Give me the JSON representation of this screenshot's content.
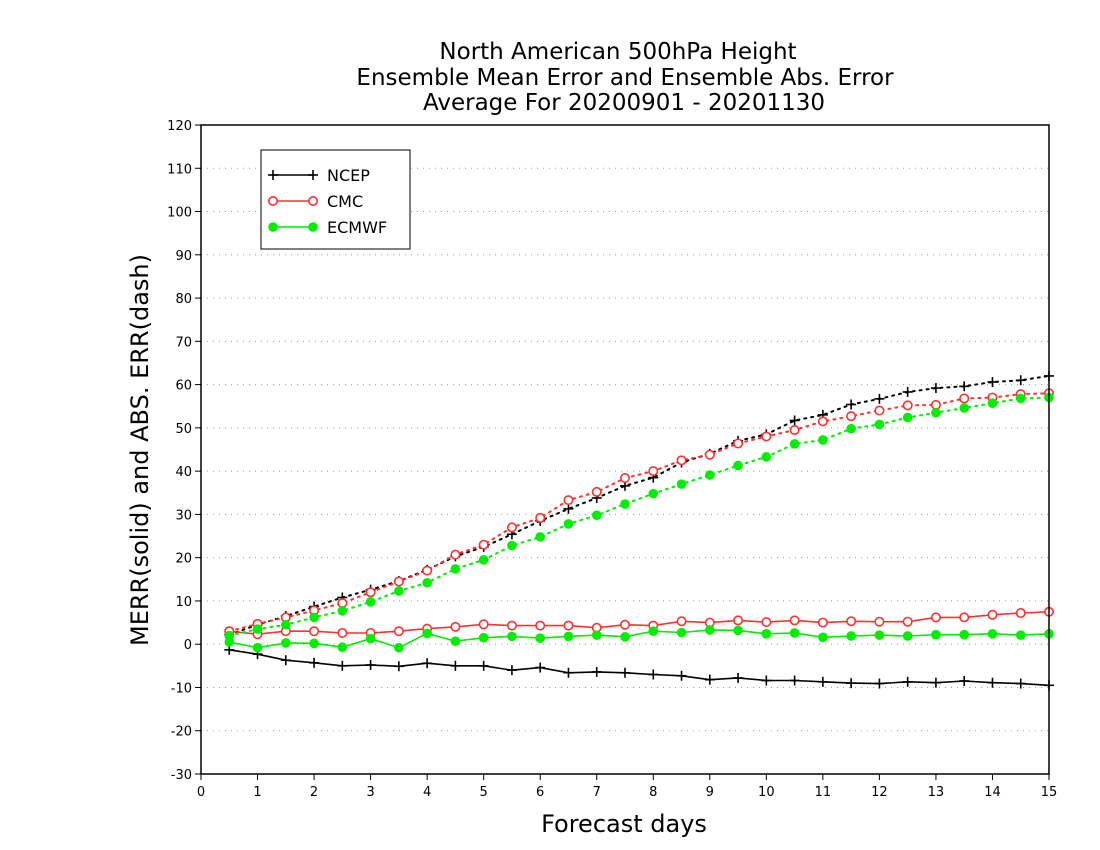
{
  "chart_data": {
    "type": "line",
    "title_lines": [
      "North American 500hPa Height",
      "Ensemble Mean Error and Ensemble Abs. Error",
      "Average For 20200901 - 20201130"
    ],
    "xlabel": "Forecast days",
    "ylabel": "MERR(solid) and ABS. ERR(dash)",
    "xlim": [
      0,
      15
    ],
    "ylim": [
      -30,
      120
    ],
    "xticks": [
      0,
      1,
      2,
      3,
      4,
      5,
      6,
      7,
      8,
      9,
      10,
      11,
      12,
      13,
      14,
      15
    ],
    "yticks": [
      -30,
      -20,
      -10,
      0,
      10,
      20,
      30,
      40,
      50,
      60,
      70,
      80,
      90,
      100,
      110,
      120
    ],
    "grid": "horizontal dotted",
    "legend_position": "top-left",
    "x": [
      0.5,
      1,
      1.5,
      2,
      2.5,
      3,
      3.5,
      4,
      4.5,
      5,
      5.5,
      6,
      6.5,
      7,
      7.5,
      8,
      8.5,
      9,
      9.5,
      10,
      10.5,
      11,
      11.5,
      12,
      12.5,
      13,
      13.5,
      14,
      14.5,
      15
    ],
    "series": [
      {
        "name": "NCEP",
        "color": "#000000",
        "marker": "plus",
        "merr": [
          -1.3,
          -2.3,
          -3.7,
          -4.3,
          -5,
          -4.8,
          -5.1,
          -4.4,
          -5,
          -5,
          -6,
          -5.4,
          -6.6,
          -6.4,
          -6.6,
          -7,
          -7.3,
          -8.2,
          -7.8,
          -8.4,
          -8.4,
          -8.7,
          -9,
          -9.1,
          -8.7,
          -8.9,
          -8.5,
          -8.9,
          -9.1,
          -9.5
        ],
        "abs_err": [
          2.2,
          4.5,
          6.5,
          8.7,
          10.8,
          12.6,
          14.6,
          17.2,
          20.3,
          22.5,
          25.4,
          28.5,
          31.3,
          33.8,
          36.6,
          38.5,
          42,
          44,
          47,
          48.5,
          51.7,
          53,
          55.4,
          56.7,
          58.3,
          59.2,
          59.6,
          60.6,
          61,
          62
        ]
      },
      {
        "name": "CMC",
        "color": "#ff3030",
        "marker": "open-circle",
        "merr": [
          3,
          2.3,
          3,
          3,
          2.6,
          2.6,
          3,
          3.6,
          4,
          4.6,
          4.3,
          4.3,
          4.3,
          3.8,
          4.5,
          4.3,
          5.3,
          5,
          5.5,
          5.1,
          5.5,
          5,
          5.3,
          5.2,
          5.2,
          6.2,
          6.2,
          6.8,
          7.2,
          7.5
        ],
        "abs_err": [
          3,
          4.7,
          6.2,
          7.8,
          9.5,
          12,
          14.5,
          17,
          20.7,
          23,
          27,
          29.2,
          33.3,
          35.2,
          38.4,
          40,
          42.5,
          43.8,
          46.4,
          48,
          49.5,
          51.5,
          52.7,
          54,
          55.2,
          55.3,
          56.8,
          57,
          57.8,
          58
        ]
      },
      {
        "name": "ECMWF",
        "color": "#00ee00",
        "marker": "filled-circle",
        "merr": [
          0.5,
          -0.8,
          0.3,
          0.2,
          -0.7,
          1.3,
          -0.8,
          2.5,
          0.7,
          1.5,
          1.8,
          1.4,
          1.8,
          2.1,
          1.7,
          3,
          2.7,
          3.3,
          3.2,
          2.4,
          2.6,
          1.6,
          1.9,
          2.1,
          1.9,
          2.2,
          2.2,
          2.4,
          2.1,
          2.4
        ],
        "abs_err": [
          2,
          3.5,
          4.5,
          6.2,
          7.7,
          9.8,
          12.3,
          14.2,
          17.4,
          19.5,
          22.8,
          24.8,
          27.8,
          29.8,
          32.4,
          34.8,
          37,
          39.1,
          41.3,
          43.3,
          46.3,
          47.2,
          49.8,
          50.8,
          52.4,
          53.5,
          54.6,
          55.7,
          56.8,
          57
        ]
      }
    ]
  }
}
